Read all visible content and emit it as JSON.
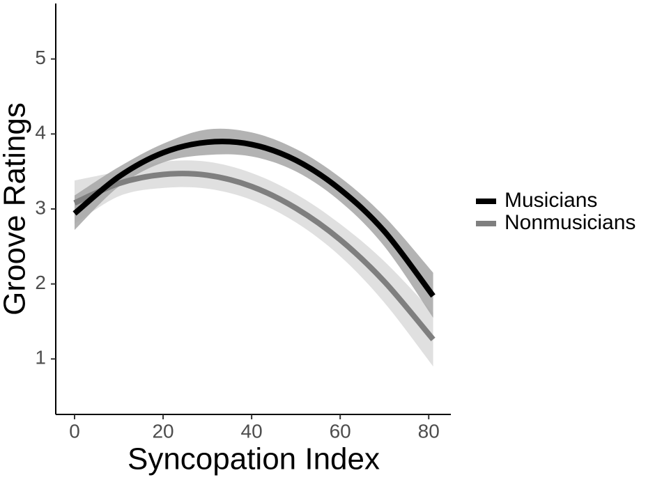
{
  "chart_data": {
    "type": "line",
    "x_label": "Syncopation Index",
    "y_label": "Groove Ratings",
    "x": [
      0,
      10,
      20,
      30,
      40,
      50,
      60,
      70,
      81
    ],
    "series": [
      {
        "name": "Musicians",
        "color": "#000000",
        "band_color": "#a6a6a6",
        "values": [
          2.94,
          3.43,
          3.75,
          3.89,
          3.86,
          3.65,
          3.26,
          2.7,
          1.84
        ],
        "lower": [
          2.72,
          3.3,
          3.62,
          3.72,
          3.7,
          3.5,
          3.1,
          2.5,
          1.55
        ],
        "upper": [
          3.18,
          3.56,
          3.87,
          4.06,
          4.02,
          3.8,
          3.42,
          2.9,
          2.15
        ]
      },
      {
        "name": "Nonmusicians",
        "color": "#7f7f7f",
        "band_color": "#e0e0e0",
        "values": [
          3.08,
          3.34,
          3.46,
          3.45,
          3.3,
          3.01,
          2.59,
          2.03,
          1.26
        ],
        "lower": [
          2.8,
          3.17,
          3.28,
          3.27,
          3.12,
          2.82,
          2.37,
          1.75,
          0.9
        ],
        "upper": [
          3.38,
          3.5,
          3.63,
          3.63,
          3.48,
          3.2,
          2.8,
          2.3,
          1.62
        ]
      }
    ],
    "xlim": [
      -4.25,
      85
    ],
    "ylim": [
      0.26,
      5.74
    ],
    "xticks": [
      0,
      20,
      40,
      60,
      80
    ],
    "yticks": [
      1,
      2,
      3,
      4,
      5
    ],
    "grid": false,
    "legend": "right"
  }
}
